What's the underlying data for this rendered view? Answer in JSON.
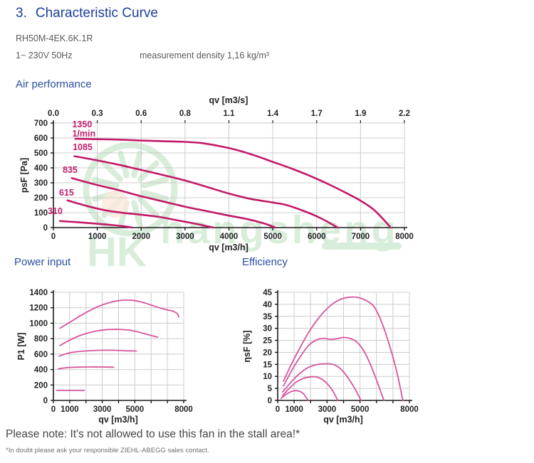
{
  "page": {
    "title_number": "3.",
    "title": "Characteristic Curve",
    "model": "RH50M-4EK.6K.1R",
    "power_supply": "1~ 230V 50Hz",
    "density": "measurement density 1,16 kg/m³",
    "note": "Please note: It's not allowed to use this fan in the stall area!*",
    "footnote": "*In doubt please ask your responsible ZIEHL-ABEGG sales contact.",
    "watermark": "hangsheng"
  },
  "colors": {
    "title_blue": "#1C3E9C",
    "heading_blue": "#2B4EA2",
    "curve_main": "#C11A67",
    "curve_small": "#D6559B",
    "label_pink": "#C21E6C",
    "grid": "#CCCCCC",
    "axis": "#1A1A1A",
    "text_dark": "#222222",
    "watermark_green": "#7FC487",
    "watermark_orange": "#F2BE93"
  },
  "chart_data": [
    {
      "id": "air",
      "type": "line",
      "heading": "Air performance",
      "xlabel": "qv [m3/h]",
      "ylabel": "psF [Pa]",
      "x2label": "qv [m3/s]",
      "xlim": [
        0,
        8000
      ],
      "ylim": [
        0,
        700
      ],
      "grid": true,
      "curve_color": "#C11A67",
      "xticks": [
        {
          "v": 0,
          "t": "0"
        },
        {
          "v": 1000,
          "t": "1000"
        },
        {
          "v": 2000,
          "t": "2000"
        },
        {
          "v": 3000,
          "t": "3000"
        },
        {
          "v": 4000,
          "t": "4000"
        },
        {
          "v": 5000,
          "t": "5000"
        },
        {
          "v": 6000,
          "t": "6000"
        },
        {
          "v": 7000,
          "t": "7000"
        },
        {
          "v": 8000,
          "t": "8000"
        }
      ],
      "yticks": [
        {
          "v": 0,
          "t": "0"
        },
        {
          "v": 100,
          "t": "100"
        },
        {
          "v": 200,
          "t": "200"
        },
        {
          "v": 300,
          "t": "300"
        },
        {
          "v": 400,
          "t": "400"
        },
        {
          "v": 500,
          "t": "500"
        },
        {
          "v": 600,
          "t": "600"
        },
        {
          "v": 700,
          "t": "700"
        }
      ],
      "x2ticks": [
        {
          "v": 0,
          "t": "0.0"
        },
        {
          "v": 1000,
          "t": "0.3"
        },
        {
          "v": 2000,
          "t": "0.6"
        },
        {
          "v": 3000,
          "t": "0.8"
        },
        {
          "v": 4000,
          "t": "1.1"
        },
        {
          "v": 5000,
          "t": "1.4"
        },
        {
          "v": 6000,
          "t": "1.7"
        },
        {
          "v": 7000,
          "t": "1.9"
        },
        {
          "v": 8000,
          "t": "2.2"
        }
      ],
      "series": [
        {
          "name": "1350",
          "unit": "1/min",
          "label_at": [
            430,
            672
          ],
          "points": [
            [
              500,
              595
            ],
            [
              1000,
              592
            ],
            [
              1500,
              589
            ],
            [
              2000,
              583
            ],
            [
              2500,
              578
            ],
            [
              3000,
              574
            ],
            [
              3400,
              565
            ],
            [
              3800,
              545
            ],
            [
              4200,
              518
            ],
            [
              4600,
              482
            ],
            [
              5000,
              440
            ],
            [
              5400,
              398
            ],
            [
              5800,
              352
            ],
            [
              6200,
              300
            ],
            [
              6600,
              243
            ],
            [
              7000,
              180
            ],
            [
              7300,
              120
            ],
            [
              7600,
              30
            ],
            [
              7680,
              0
            ]
          ]
        },
        {
          "name": "1085",
          "label_at": [
            440,
            519
          ],
          "points": [
            [
              480,
              478
            ],
            [
              1000,
              450
            ],
            [
              1500,
              420
            ],
            [
              2000,
              386
            ],
            [
              2500,
              352
            ],
            [
              3000,
              315
            ],
            [
              3500,
              272
            ],
            [
              4000,
              228
            ],
            [
              4500,
              192
            ],
            [
              5000,
              168
            ],
            [
              5300,
              152
            ],
            [
              5700,
              112
            ],
            [
              6100,
              62
            ],
            [
              6480,
              0
            ]
          ]
        },
        {
          "name": "835",
          "label_at": [
            210,
            367
          ],
          "points": [
            [
              420,
              331
            ],
            [
              1000,
              285
            ],
            [
              1500,
              250
            ],
            [
              2000,
              210
            ],
            [
              2500,
              175
            ],
            [
              3000,
              140
            ],
            [
              3500,
              110
            ],
            [
              4000,
              80
            ],
            [
              4400,
              58
            ],
            [
              4800,
              28
            ],
            [
              5060,
              0
            ]
          ]
        },
        {
          "name": "615",
          "label_at": [
            130,
            214
          ],
          "points": [
            [
              320,
              182
            ],
            [
              800,
              142
            ],
            [
              1200,
              115
            ],
            [
              1600,
              98
            ],
            [
              2000,
              86
            ],
            [
              2400,
              72
            ],
            [
              2800,
              50
            ],
            [
              3200,
              28
            ],
            [
              3650,
              0
            ]
          ]
        },
        {
          "name": "310",
          "label_at": [
            -130,
            90
          ],
          "points": [
            [
              150,
              44
            ],
            [
              500,
              37
            ],
            [
              900,
              28
            ],
            [
              1300,
              18
            ],
            [
              1600,
              9
            ],
            [
              1800,
              0
            ]
          ]
        }
      ]
    },
    {
      "id": "power",
      "type": "line",
      "heading": "Power input",
      "xlabel": "qv [m3/h]",
      "ylabel": "P1 [W]",
      "xlim": [
        0,
        8000
      ],
      "ylim": [
        0,
        1400
      ],
      "grid": true,
      "curve_color": "#D6559B",
      "xticks": [
        {
          "v": 0,
          "t": "0"
        },
        {
          "v": 1000,
          "t": "1000"
        },
        {
          "v": 2000,
          "t": ""
        },
        {
          "v": 3000,
          "t": "3000"
        },
        {
          "v": 4000,
          "t": ""
        },
        {
          "v": 5000,
          "t": "5000"
        },
        {
          "v": 6000,
          "t": ""
        },
        {
          "v": 7000,
          "t": ""
        },
        {
          "v": 8000,
          "t": "8000"
        }
      ],
      "yticks": [
        {
          "v": 0,
          "t": "0"
        },
        {
          "v": 200,
          "t": "200"
        },
        {
          "v": 400,
          "t": "400"
        },
        {
          "v": 600,
          "t": "600"
        },
        {
          "v": 800,
          "t": "800"
        },
        {
          "v": 1000,
          "t": "1000"
        },
        {
          "v": 1200,
          "t": "1200"
        },
        {
          "v": 1400,
          "t": "1400"
        }
      ],
      "series": [
        {
          "name": "1350",
          "points": [
            [
              400,
              935
            ],
            [
              1000,
              1010
            ],
            [
              1600,
              1090
            ],
            [
              2200,
              1160
            ],
            [
              2800,
              1220
            ],
            [
              3400,
              1265
            ],
            [
              4000,
              1292
            ],
            [
              4500,
              1300
            ],
            [
              5000,
              1292
            ],
            [
              5500,
              1268
            ],
            [
              6000,
              1235
            ],
            [
              6500,
              1200
            ],
            [
              7000,
              1172
            ],
            [
              7350,
              1155
            ],
            [
              7600,
              1125
            ],
            [
              7700,
              1080
            ]
          ]
        },
        {
          "name": "1085",
          "points": [
            [
              400,
              710
            ],
            [
              1000,
              780
            ],
            [
              1600,
              838
            ],
            [
              2200,
              878
            ],
            [
              2800,
              905
            ],
            [
              3400,
              918
            ],
            [
              4000,
              920
            ],
            [
              4600,
              912
            ],
            [
              5200,
              888
            ],
            [
              5800,
              852
            ],
            [
              6400,
              820
            ]
          ]
        },
        {
          "name": "835",
          "points": [
            [
              350,
              572
            ],
            [
              900,
              612
            ],
            [
              1500,
              632
            ],
            [
              2100,
              642
            ],
            [
              2700,
              648
            ],
            [
              3300,
              650
            ],
            [
              3900,
              648
            ],
            [
              4500,
              642
            ],
            [
              5100,
              640
            ]
          ]
        },
        {
          "name": "615",
          "points": [
            [
              300,
              408
            ],
            [
              800,
              424
            ],
            [
              1400,
              430
            ],
            [
              2200,
              433
            ],
            [
              3000,
              433
            ],
            [
              3700,
              430
            ]
          ]
        },
        {
          "name": "310",
          "points": [
            [
              200,
              130
            ],
            [
              1900,
              130
            ]
          ]
        }
      ]
    },
    {
      "id": "eff",
      "type": "line",
      "heading": "Efficiency",
      "xlabel": "qv [m3/h]",
      "ylabel": "ηsF [%]",
      "xlim": [
        0,
        8000
      ],
      "ylim": [
        0,
        45
      ],
      "grid": true,
      "curve_color": "#D6559B",
      "xticks": [
        {
          "v": 0,
          "t": "0"
        },
        {
          "v": 1000,
          "t": "1000"
        },
        {
          "v": 2000,
          "t": ""
        },
        {
          "v": 3000,
          "t": "3000"
        },
        {
          "v": 4000,
          "t": ""
        },
        {
          "v": 5000,
          "t": "5000"
        },
        {
          "v": 6000,
          "t": ""
        },
        {
          "v": 7000,
          "t": ""
        },
        {
          "v": 8000,
          "t": "8000"
        }
      ],
      "yticks": [
        {
          "v": 0,
          "t": "0"
        },
        {
          "v": 5,
          "t": "5"
        },
        {
          "v": 10,
          "t": "10"
        },
        {
          "v": 15,
          "t": "15"
        },
        {
          "v": 20,
          "t": "20"
        },
        {
          "v": 25,
          "t": "25"
        },
        {
          "v": 30,
          "t": "30"
        },
        {
          "v": 35,
          "t": "35"
        },
        {
          "v": 40,
          "t": "40"
        },
        {
          "v": 45,
          "t": "45"
        }
      ],
      "series": [
        {
          "name": "1350",
          "points": [
            [
              350,
              8
            ],
            [
              900,
              16
            ],
            [
              1400,
              22.5
            ],
            [
              1900,
              28.5
            ],
            [
              2400,
              33.5
            ],
            [
              2900,
              37.5
            ],
            [
              3400,
              40.5
            ],
            [
              3900,
              42.3
            ],
            [
              4400,
              43
            ],
            [
              4900,
              42.8
            ],
            [
              5400,
              41.5
            ],
            [
              5800,
              39.5
            ],
            [
              6100,
              36
            ],
            [
              6400,
              31
            ],
            [
              6700,
              25
            ],
            [
              7000,
              18
            ],
            [
              7300,
              10
            ],
            [
              7600,
              0
            ]
          ]
        },
        {
          "name": "1085",
          "points": [
            [
              350,
              6
            ],
            [
              900,
              13
            ],
            [
              1400,
              18.5
            ],
            [
              1900,
              23
            ],
            [
              2400,
              25.3
            ],
            [
              2800,
              25.8
            ],
            [
              3200,
              25.4
            ],
            [
              3600,
              25.7
            ],
            [
              4000,
              26.2
            ],
            [
              4400,
              25.8
            ],
            [
              4800,
              24.3
            ],
            [
              5200,
              21
            ],
            [
              5600,
              15.5
            ],
            [
              6000,
              8.5
            ],
            [
              6450,
              0
            ]
          ]
        },
        {
          "name": "835",
          "points": [
            [
              300,
              3.5
            ],
            [
              800,
              7.5
            ],
            [
              1300,
              11
            ],
            [
              1800,
              13.5
            ],
            [
              2300,
              14.8
            ],
            [
              2800,
              15.2
            ],
            [
              3300,
              15.1
            ],
            [
              3700,
              13.8
            ],
            [
              4100,
              11
            ],
            [
              4500,
              7
            ],
            [
              4800,
              3.5
            ],
            [
              5060,
              0
            ]
          ]
        },
        {
          "name": "615",
          "points": [
            [
              300,
              2
            ],
            [
              700,
              5
            ],
            [
              1100,
              7.5
            ],
            [
              1500,
              9
            ],
            [
              1900,
              9.7
            ],
            [
              2300,
              9.8
            ],
            [
              2700,
              8.8
            ],
            [
              3000,
              7
            ],
            [
              3300,
              4.5
            ],
            [
              3650,
              0
            ]
          ]
        },
        {
          "name": "310",
          "points": [
            [
              200,
              0.8
            ],
            [
              500,
              2.5
            ],
            [
              800,
              3.6
            ],
            [
              1100,
              4.1
            ],
            [
              1400,
              3.6
            ],
            [
              1600,
              2.5
            ],
            [
              1850,
              0
            ]
          ]
        }
      ]
    }
  ]
}
